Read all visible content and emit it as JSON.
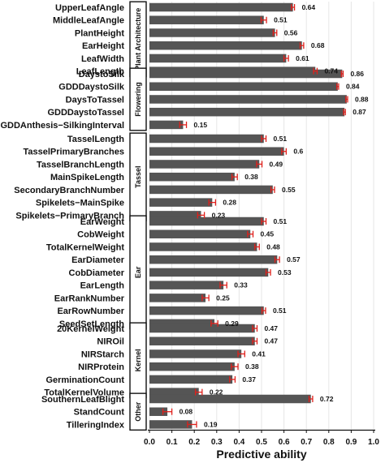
{
  "chart_data": {
    "type": "bar",
    "orientation": "horizontal",
    "xlabel": "Predictive ability",
    "xlim": [
      0,
      1.0
    ],
    "xticks": [
      "0.0",
      "0.1",
      "0.2",
      "0.3",
      "0.4",
      "0.5",
      "0.6",
      "0.7",
      "0.8",
      "0.9",
      "1.0"
    ],
    "grid": true,
    "colors": {
      "bar": "#555555",
      "error": "#e0201b",
      "grid": "#e6e6e6"
    },
    "groups": [
      {
        "name": "Plant Architecture",
        "traits": [
          {
            "name": "UpperLeafAngle",
            "value": 0.64,
            "label": "0.64",
            "err": 0.007
          },
          {
            "name": "MiddleLeafAngle",
            "value": 0.51,
            "label": "0.51",
            "err": 0.012
          },
          {
            "name": "PlantHeight",
            "value": 0.56,
            "label": "0.56",
            "err": 0.008
          },
          {
            "name": "EarHeight",
            "value": 0.68,
            "label": "0.68",
            "err": 0.008
          },
          {
            "name": "LeafWidth",
            "value": 0.61,
            "label": "0.61",
            "err": 0.01
          },
          {
            "name": "LeafLength",
            "value": 0.74,
            "label": "0.74",
            "err": 0.008
          }
        ]
      },
      {
        "name": "Flowering",
        "traits": [
          {
            "name": "DaystoSilk",
            "value": 0.86,
            "label": "0.86",
            "err": 0.004
          },
          {
            "name": "GDDDaystoSilk",
            "value": 0.84,
            "label": "0.84",
            "err": 0.004
          },
          {
            "name": "DaysToTassel",
            "value": 0.88,
            "label": "0.88",
            "err": 0.004
          },
          {
            "name": "GDDDaystoTassel",
            "value": 0.87,
            "label": "0.87",
            "err": 0.004
          },
          {
            "name": "GDDAnthesis−SilkingInterval",
            "value": 0.15,
            "label": "0.15",
            "err": 0.015
          }
        ]
      },
      {
        "name": "Tassel",
        "traits": [
          {
            "name": "TasselLength",
            "value": 0.51,
            "label": "0.51",
            "err": 0.01
          },
          {
            "name": "TasselPrimaryBranches",
            "value": 0.6,
            "label": "0.6",
            "err": 0.01
          },
          {
            "name": "TasselBranchLength",
            "value": 0.49,
            "label": "0.49",
            "err": 0.012
          },
          {
            "name": "MainSpikeLength",
            "value": 0.38,
            "label": "0.38",
            "err": 0.012
          },
          {
            "name": "SecondaryBranchNumber",
            "value": 0.55,
            "label": "0.55",
            "err": 0.008
          },
          {
            "name": "Spikelets−MainSpike",
            "value": 0.28,
            "label": "0.28",
            "err": 0.015
          },
          {
            "name": "Spikelets−PrimaryBranch",
            "value": 0.23,
            "label": "0.23",
            "err": 0.015
          }
        ]
      },
      {
        "name": "Ear",
        "traits": [
          {
            "name": "EarWeight",
            "value": 0.51,
            "label": "0.51",
            "err": 0.01
          },
          {
            "name": "CobWeight",
            "value": 0.45,
            "label": "0.45",
            "err": 0.012
          },
          {
            "name": "TotalKernelWeight",
            "value": 0.48,
            "label": "0.48",
            "err": 0.01
          },
          {
            "name": "EarDiameter",
            "value": 0.57,
            "label": "0.57",
            "err": 0.01
          },
          {
            "name": "CobDiameter",
            "value": 0.53,
            "label": "0.53",
            "err": 0.01
          },
          {
            "name": "EarLength",
            "value": 0.33,
            "label": "0.33",
            "err": 0.015
          },
          {
            "name": "EarRankNumber",
            "value": 0.25,
            "label": "0.25",
            "err": 0.015
          },
          {
            "name": "EarRowNumber",
            "value": 0.51,
            "label": "0.51",
            "err": 0.008
          },
          {
            "name": "SeedSetLength",
            "value": 0.29,
            "label": "0.29",
            "err": 0.015
          }
        ]
      },
      {
        "name": "Kernel",
        "traits": [
          {
            "name": "20KernelWeight",
            "value": 0.47,
            "label": "0.47",
            "err": 0.01
          },
          {
            "name": "NIROil",
            "value": 0.47,
            "label": "0.47",
            "err": 0.01
          },
          {
            "name": "NIRStarch",
            "value": 0.41,
            "label": "0.41",
            "err": 0.015
          },
          {
            "name": "NIRProtein",
            "value": 0.38,
            "label": "0.38",
            "err": 0.015
          },
          {
            "name": "GerminationCount",
            "value": 0.37,
            "label": "0.37",
            "err": 0.012
          },
          {
            "name": "TotalKernelVolume",
            "value": 0.22,
            "label": "0.22",
            "err": 0.015
          }
        ]
      },
      {
        "name": "Other",
        "traits": [
          {
            "name": "SouthernLeafBlight",
            "value": 0.72,
            "label": "0.72",
            "err": 0.008
          },
          {
            "name": "StandCount",
            "value": 0.08,
            "label": "0.08",
            "err": 0.02
          },
          {
            "name": "TilleringIndex",
            "value": 0.19,
            "label": "0.19",
            "err": 0.02
          }
        ]
      }
    ]
  }
}
